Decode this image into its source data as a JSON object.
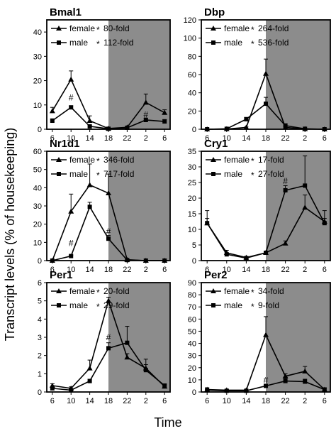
{
  "figure": {
    "ylabel": "Transcript levels (% of housekeeping)",
    "xlabel": "Time"
  },
  "chart_data": [
    {
      "type": "line",
      "title": "Bmal1",
      "x": [
        "6",
        "10",
        "14",
        "18",
        "22",
        "2",
        "6"
      ],
      "ylim": [
        0,
        45
      ],
      "yticks": [
        0,
        10,
        20,
        30,
        40
      ],
      "dark_start_x": "18",
      "series": [
        {
          "name": "female",
          "values": [
            7.5,
            20.5,
            3.5,
            0.3,
            0.8,
            11,
            6.8
          ],
          "errors": [
            1.5,
            3.5,
            2,
            0.2,
            0.3,
            3.5,
            1.2
          ]
        },
        {
          "name": "male",
          "values": [
            3.5,
            9,
            1.2,
            0.2,
            0.6,
            3.8,
            3.2
          ],
          "errors": [
            0.8,
            0.6,
            0.4,
            0.1,
            0.2,
            0.8,
            0.8
          ]
        }
      ],
      "legend": [
        {
          "name": "female",
          "fold": "80-fold"
        },
        {
          "name": "male",
          "fold": "112-fold"
        }
      ],
      "annotations": [
        {
          "symbol": "#",
          "x": "10",
          "y": 13
        },
        {
          "symbol": "#",
          "x": "2",
          "y": 6
        }
      ]
    },
    {
      "type": "line",
      "title": "Dbp",
      "x": [
        "6",
        "10",
        "14",
        "18",
        "22",
        "2",
        "6"
      ],
      "ylim": [
        0,
        120
      ],
      "yticks": [
        0,
        20,
        40,
        60,
        80,
        100,
        120
      ],
      "dark_start_x": "18",
      "series": [
        {
          "name": "female",
          "values": [
            0,
            0.3,
            2,
            61,
            2,
            0.3,
            0
          ],
          "errors": [
            0.2,
            0.2,
            0.5,
            16,
            1,
            0.2,
            0.2
          ]
        },
        {
          "name": "male",
          "values": [
            0,
            0.5,
            11,
            28,
            4,
            0.5,
            0
          ],
          "errors": [
            0.2,
            0.3,
            2,
            7,
            2,
            0.2,
            0.2
          ]
        }
      ],
      "legend": [
        {
          "name": "female",
          "fold": "264-fold"
        },
        {
          "name": "male",
          "fold": "536-fold"
        }
      ],
      "annotations": []
    },
    {
      "type": "line",
      "title": "Nr1d1",
      "x": [
        "6",
        "10",
        "14",
        "18",
        "22",
        "2",
        "6"
      ],
      "ylim": [
        0,
        60
      ],
      "yticks": [
        0,
        10,
        20,
        30,
        40,
        50,
        60
      ],
      "dark_start_x": "18",
      "series": [
        {
          "name": "female",
          "values": [
            0,
            27,
            41.5,
            37,
            0.5,
            0,
            0
          ],
          "errors": [
            0.3,
            9.5,
            11.5,
            10.5,
            0.5,
            0.2,
            0.2
          ]
        },
        {
          "name": "male",
          "values": [
            0,
            2.5,
            29.5,
            12,
            0.3,
            0,
            0
          ],
          "errors": [
            0.2,
            0.5,
            2.5,
            1.8,
            0.3,
            0.2,
            0.2
          ]
        }
      ],
      "legend": [
        {
          "name": "female",
          "fold": "346-fold"
        },
        {
          "name": "male",
          "fold": "717-fold"
        }
      ],
      "annotations": [
        {
          "symbol": "#",
          "x": "10",
          "y": 9.5
        },
        {
          "symbol": "#",
          "x": "18",
          "y": 16
        }
      ]
    },
    {
      "type": "line",
      "title": "Cry1",
      "x": [
        "6",
        "10",
        "14",
        "18",
        "22",
        "2",
        "6"
      ],
      "ylim": [
        0,
        35
      ],
      "yticks": [
        0,
        5,
        10,
        15,
        20,
        25,
        30,
        35
      ],
      "dark_start_x": "18",
      "series": [
        {
          "name": "female",
          "values": [
            12,
            2.5,
            1,
            2.5,
            5.5,
            17,
            12.5
          ],
          "errors": [
            4,
            0.8,
            0.3,
            0.5,
            0.8,
            4,
            3.5
          ]
        },
        {
          "name": "male",
          "values": [
            12,
            2,
            0.8,
            2.5,
            22.5,
            24,
            12
          ],
          "errors": [
            1.5,
            0.5,
            0.3,
            0.5,
            1.5,
            9.5,
            1.5
          ]
        }
      ],
      "legend": [
        {
          "name": "female",
          "fold": "17-fold"
        },
        {
          "name": "male",
          "fold": "27-fold"
        }
      ],
      "annotations": [
        {
          "symbol": "#",
          "x": "22",
          "y": 25.5
        }
      ]
    },
    {
      "type": "line",
      "title": "Per1",
      "x": [
        "6",
        "10",
        "14",
        "18",
        "22",
        "2",
        "6"
      ],
      "ylim": [
        0,
        6
      ],
      "yticks": [
        0,
        1,
        2,
        3,
        4,
        5,
        6
      ],
      "dark_start_x": "18",
      "series": [
        {
          "name": "female",
          "values": [
            0.35,
            0.2,
            1.3,
            5,
            1.9,
            1.3,
            0.3
          ],
          "errors": [
            0.1,
            0.08,
            0.45,
            0.2,
            0.2,
            0.5,
            0.1
          ]
        },
        {
          "name": "male",
          "values": [
            0.2,
            0.1,
            0.6,
            2.4,
            2.7,
            1.2,
            0.35
          ],
          "errors": [
            0.1,
            0.06,
            0.1,
            0.3,
            0.9,
            0.3,
            0.1
          ]
        }
      ],
      "legend": [
        {
          "name": "female",
          "fold": "20-fold"
        },
        {
          "name": "male",
          "fold": "29-fold"
        }
      ],
      "annotations": [
        {
          "symbol": "#",
          "x": "18",
          "y": 3
        }
      ]
    },
    {
      "type": "line",
      "title": "Per2",
      "x": [
        "6",
        "10",
        "14",
        "18",
        "22",
        "2",
        "6"
      ],
      "ylim": [
        0,
        90
      ],
      "yticks": [
        0,
        10,
        20,
        30,
        40,
        50,
        60,
        70,
        80,
        90
      ],
      "dark_start_x": "18",
      "series": [
        {
          "name": "female",
          "values": [
            2,
            1.5,
            1.5,
            47,
            13,
            17,
            2
          ],
          "errors": [
            1.5,
            0.5,
            0.5,
            15,
            2,
            4,
            1.5
          ]
        },
        {
          "name": "male",
          "values": [
            1.5,
            1,
            1,
            5,
            9,
            8.5,
            2
          ],
          "errors": [
            0.5,
            0.3,
            0.3,
            1,
            2,
            2,
            0.5
          ]
        }
      ],
      "legend": [
        {
          "name": "female",
          "fold": "34-fold"
        },
        {
          "name": "male",
          "fold": "9-fold"
        }
      ],
      "annotations": [
        {
          "symbol": "#",
          "x": "18",
          "y": 9.5
        }
      ]
    }
  ]
}
